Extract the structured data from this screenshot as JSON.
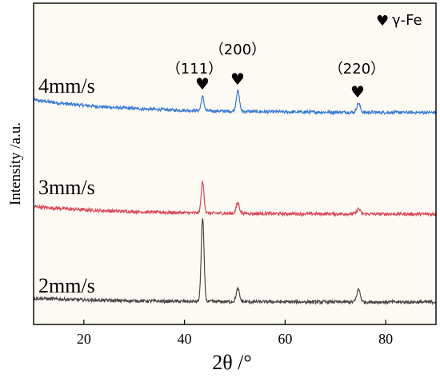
{
  "chart_data": {
    "type": "line",
    "xlabel": "2θ /°",
    "ylabel": "Intensity /a.u.",
    "xlim": [
      10,
      90
    ],
    "x_ticks": [
      "20",
      "40",
      "60",
      "80"
    ],
    "y_ticks": "none",
    "legend": {
      "marker": "♥",
      "label": "γ-Fe",
      "placement": "top-right"
    },
    "peaks": [
      {
        "label": "（111）",
        "two_theta": 43.6
      },
      {
        "label": "（200）",
        "two_theta": 50.6
      },
      {
        "label": "（220）",
        "two_theta": 74.6
      }
    ],
    "series": [
      {
        "name": "4mm/s",
        "color": "#3a7bd5",
        "baseline_start": 0.2,
        "baseline_end": 0.0,
        "peak_heights": [
          0.22,
          0.32,
          0.14
        ],
        "sample_points": [
          [
            10,
            0.2
          ],
          [
            20,
            0.1
          ],
          [
            43.6,
            0.22
          ],
          [
            50.6,
            0.32
          ],
          [
            74.6,
            0.14
          ],
          [
            90,
            0.0
          ]
        ]
      },
      {
        "name": "3mm/s",
        "color": "#d94a5a",
        "baseline_start": 0.12,
        "baseline_end": 0.0,
        "peak_heights": [
          0.48,
          0.16,
          0.08
        ],
        "sample_points": [
          [
            10,
            0.12
          ],
          [
            20,
            0.06
          ],
          [
            43.6,
            0.48
          ],
          [
            50.6,
            0.16
          ],
          [
            74.6,
            0.08
          ],
          [
            90,
            0.0
          ]
        ]
      },
      {
        "name": "2mm/s",
        "color": "#4a4a4a",
        "baseline_start": 0.06,
        "baseline_end": 0.0,
        "peak_heights": [
          1.3,
          0.2,
          0.2
        ],
        "sample_points": [
          [
            10,
            0.06
          ],
          [
            20,
            0.03
          ],
          [
            43.6,
            1.3
          ],
          [
            50.6,
            0.2
          ],
          [
            74.6,
            0.2
          ],
          [
            90,
            0.0
          ]
        ]
      }
    ]
  },
  "colors": {
    "plot_background": "#fdfaf3",
    "axis": "#000000"
  }
}
